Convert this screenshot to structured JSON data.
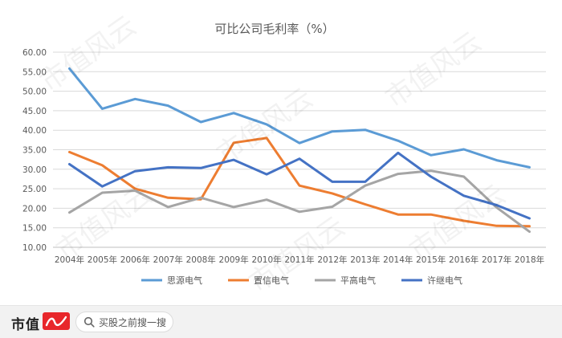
{
  "chart_data": {
    "type": "line",
    "title": "可比公司毛利率（%）",
    "categories": [
      "2004年",
      "2005年",
      "2006年",
      "2007年",
      "2008年",
      "2009年",
      "2010年",
      "2011年",
      "2012年",
      "2013年",
      "2014年",
      "2015年",
      "2016年",
      "2017年",
      "2018年"
    ],
    "y_tick_labels": [
      "10.00",
      "15.00",
      "20.00",
      "25.00",
      "30.00",
      "35.00",
      "40.00",
      "45.00",
      "50.00",
      "55.00",
      "60.00"
    ],
    "ylim": [
      10,
      60
    ],
    "grid": true,
    "legend_position": "bottom",
    "series": [
      {
        "name": "思源电气",
        "color": "#5b9bd5",
        "values": [
          55.8,
          45.5,
          48.0,
          46.3,
          42.1,
          44.4,
          41.5,
          36.7,
          39.7,
          40.1,
          37.3,
          33.6,
          35.1,
          32.3,
          30.5
        ]
      },
      {
        "name": "置信电气",
        "color": "#ed7d31",
        "values": [
          34.4,
          31.0,
          25.0,
          22.7,
          22.3,
          36.8,
          38.0,
          25.8,
          23.8,
          21.0,
          18.4,
          18.4,
          16.8,
          15.5,
          15.4
        ]
      },
      {
        "name": "平高电气",
        "color": "#a5a5a5",
        "values": [
          18.9,
          24.0,
          24.5,
          20.3,
          22.7,
          20.3,
          22.2,
          19.1,
          20.4,
          25.8,
          28.8,
          29.6,
          28.1,
          20.2,
          14.0
        ]
      },
      {
        "name": "许继电气",
        "color": "#4472c4",
        "values": [
          31.3,
          25.6,
          29.5,
          30.5,
          30.3,
          32.4,
          28.7,
          32.7,
          26.8,
          26.8,
          34.2,
          28.1,
          23.2,
          20.8,
          17.4
        ]
      }
    ]
  },
  "footer": {
    "brand": "市值",
    "search_placeholder": "买股之前搜一搜"
  },
  "watermark_text": "市值风云"
}
